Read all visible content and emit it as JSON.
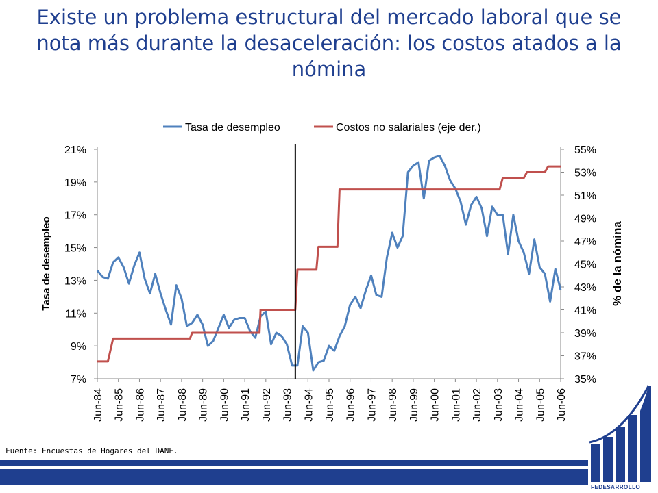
{
  "title": "Existe un problema estructural del mercado laboral que se nota más durante la desaceleración: los costos atados a la nómina",
  "source": "Fuente: Encuestas  de Hogares del DANE.",
  "logo_text": "FEDESARROLLO",
  "colors": {
    "title": "#1f3f8f",
    "unemployment": "#4f81bd",
    "costs": "#c0504d",
    "brand": "#1f3f8f"
  },
  "chart_data": {
    "type": "line",
    "ylabel": "Tasa de desempleo",
    "ylabel_right": "% de la nómina",
    "ylim": [
      0.07,
      0.21
    ],
    "ylim_right": [
      0.35,
      0.55
    ],
    "yticks": [
      "21%",
      "19%",
      "17%",
      "15%",
      "13%",
      "11%",
      "9%",
      "7%"
    ],
    "yticks_right": [
      "55%",
      "53%",
      "51%",
      "49%",
      "47%",
      "45%",
      "43%",
      "41%",
      "39%",
      "37%",
      "35%"
    ],
    "x_ticks": [
      "Jun-84",
      "Jun-85",
      "Jun-86",
      "Jun-87",
      "Jun-88",
      "Jun-89",
      "Jun-90",
      "Jun-91",
      "Jun-92",
      "Jun-93",
      "Jun-94",
      "Jun-95",
      "Jun-96",
      "Jun-97",
      "Jun-98",
      "Jun-99",
      "Jun-00",
      "Jun-01",
      "Jun-02",
      "Jun-03",
      "Jun-04",
      "Jun-05",
      "Jun-06"
    ],
    "x_range": [
      1984.5,
      2006.5
    ],
    "legend_position": "top",
    "vertical_marker_x": 1993.9,
    "series": [
      {
        "name": "Tasa de desempleo",
        "axis": "left",
        "color": "#4f81bd",
        "points": [
          [
            1984.5,
            0.136
          ],
          [
            1984.75,
            0.132
          ],
          [
            1985.0,
            0.131
          ],
          [
            1985.25,
            0.141
          ],
          [
            1985.5,
            0.144
          ],
          [
            1985.75,
            0.138
          ],
          [
            1986.0,
            0.128
          ],
          [
            1986.25,
            0.139
          ],
          [
            1986.5,
            0.147
          ],
          [
            1986.75,
            0.131
          ],
          [
            1987.0,
            0.122
          ],
          [
            1987.25,
            0.134
          ],
          [
            1987.5,
            0.122
          ],
          [
            1987.75,
            0.112
          ],
          [
            1988.0,
            0.103
          ],
          [
            1988.25,
            0.127
          ],
          [
            1988.5,
            0.119
          ],
          [
            1988.75,
            0.102
          ],
          [
            1989.0,
            0.104
          ],
          [
            1989.25,
            0.109
          ],
          [
            1989.5,
            0.103
          ],
          [
            1989.75,
            0.09
          ],
          [
            1990.0,
            0.093
          ],
          [
            1990.25,
            0.101
          ],
          [
            1990.5,
            0.109
          ],
          [
            1990.75,
            0.101
          ],
          [
            1991.0,
            0.106
          ],
          [
            1991.25,
            0.107
          ],
          [
            1991.5,
            0.107
          ],
          [
            1991.75,
            0.099
          ],
          [
            1992.0,
            0.095
          ],
          [
            1992.25,
            0.108
          ],
          [
            1992.5,
            0.111
          ],
          [
            1992.75,
            0.091
          ],
          [
            1993.0,
            0.098
          ],
          [
            1993.25,
            0.096
          ],
          [
            1993.5,
            0.091
          ],
          [
            1993.75,
            0.078
          ],
          [
            1994.0,
            0.078
          ],
          [
            1994.25,
            0.102
          ],
          [
            1994.5,
            0.098
          ],
          [
            1994.75,
            0.075
          ],
          [
            1995.0,
            0.08
          ],
          [
            1995.25,
            0.081
          ],
          [
            1995.5,
            0.09
          ],
          [
            1995.75,
            0.087
          ],
          [
            1996.0,
            0.096
          ],
          [
            1996.25,
            0.102
          ],
          [
            1996.5,
            0.115
          ],
          [
            1996.75,
            0.12
          ],
          [
            1997.0,
            0.113
          ],
          [
            1997.25,
            0.124
          ],
          [
            1997.5,
            0.133
          ],
          [
            1997.75,
            0.121
          ],
          [
            1998.0,
            0.12
          ],
          [
            1998.25,
            0.144
          ],
          [
            1998.5,
            0.159
          ],
          [
            1998.75,
            0.15
          ],
          [
            1999.0,
            0.157
          ],
          [
            1999.25,
            0.196
          ],
          [
            1999.5,
            0.2
          ],
          [
            1999.75,
            0.202
          ],
          [
            2000.0,
            0.18
          ],
          [
            2000.25,
            0.203
          ],
          [
            2000.5,
            0.205
          ],
          [
            2000.75,
            0.206
          ],
          [
            2001.0,
            0.2
          ],
          [
            2001.25,
            0.191
          ],
          [
            2001.5,
            0.186
          ],
          [
            2001.75,
            0.178
          ],
          [
            2002.0,
            0.164
          ],
          [
            2002.25,
            0.176
          ],
          [
            2002.5,
            0.181
          ],
          [
            2002.75,
            0.174
          ],
          [
            2003.0,
            0.157
          ],
          [
            2003.25,
            0.175
          ],
          [
            2003.5,
            0.17
          ],
          [
            2003.75,
            0.17
          ],
          [
            2004.0,
            0.146
          ],
          [
            2004.25,
            0.17
          ],
          [
            2004.5,
            0.154
          ],
          [
            2004.75,
            0.147
          ],
          [
            2005.0,
            0.134
          ],
          [
            2005.25,
            0.155
          ],
          [
            2005.5,
            0.138
          ],
          [
            2005.75,
            0.134
          ],
          [
            2006.0,
            0.117
          ],
          [
            2006.25,
            0.137
          ],
          [
            2006.5,
            0.124
          ]
        ]
      },
      {
        "name": "Costos no salariales (eje der.)",
        "axis": "right",
        "color": "#c0504d",
        "points": [
          [
            1984.5,
            0.365
          ],
          [
            1985.0,
            0.365
          ],
          [
            1985.25,
            0.385
          ],
          [
            1988.9,
            0.385
          ],
          [
            1989.0,
            0.39
          ],
          [
            1992.2,
            0.39
          ],
          [
            1992.25,
            0.41
          ],
          [
            1993.9,
            0.41
          ],
          [
            1994.0,
            0.445
          ],
          [
            1994.9,
            0.445
          ],
          [
            1995.0,
            0.465
          ],
          [
            1995.9,
            0.465
          ],
          [
            1996.0,
            0.515
          ],
          [
            2003.6,
            0.515
          ],
          [
            2003.75,
            0.525
          ],
          [
            2004.75,
            0.525
          ],
          [
            2004.9,
            0.53
          ],
          [
            2005.75,
            0.53
          ],
          [
            2005.9,
            0.535
          ],
          [
            2006.5,
            0.535
          ]
        ]
      }
    ]
  }
}
